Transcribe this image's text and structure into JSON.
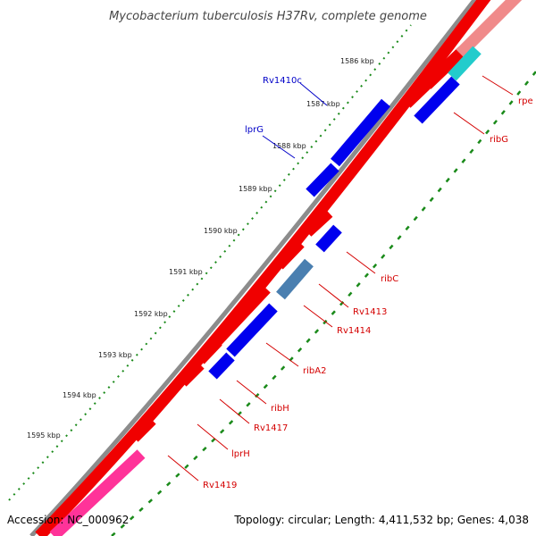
{
  "title": "Mycobacterium tuberculosis H37Rv, complete genome",
  "footer": {
    "accession": "Accession: NC_000962",
    "summary": "Topology: circular; Length: 4,411,532 bp; Genes: 4,038"
  },
  "ticks": [
    "1586 kbp",
    "1587 kbp",
    "1588 kbp",
    "1589 kbp",
    "1590 kbp",
    "1591 kbp",
    "1592 kbp",
    "1593 kbp",
    "1594 kbp",
    "1595 kbp"
  ],
  "genes": {
    "forward": [
      "Rv1410c",
      "lprG"
    ],
    "reverse": [
      "rpe",
      "ribG",
      "ribC",
      "Rv1413",
      "Rv1414",
      "ribA2",
      "ribH",
      "Rv1417",
      "lprH",
      "Rv1419"
    ]
  },
  "colors": {
    "backbone": "#8c8c8c",
    "tick_dots": "#1a8a1a",
    "red_feature": "#f00000",
    "blue_feature": "#0000ee",
    "teal_feature": "#22cccc",
    "steel_feature": "#4a7fb0",
    "pink_feature": "#ff3399",
    "salmon_feature": "#f08a8a"
  }
}
